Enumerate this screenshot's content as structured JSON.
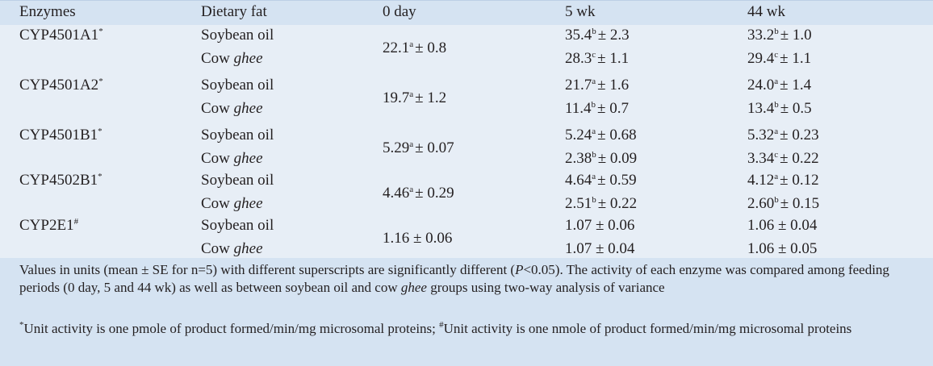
{
  "header": {
    "col1": "Enzymes",
    "col2": "Dietary fat",
    "col3": "0 day",
    "col4": "5 wk",
    "col5": "44 wk"
  },
  "groups": [
    {
      "enzyme": "CYP4501A1",
      "enzyme_sup": "*",
      "day0": "22.1",
      "day0_sup": "a",
      "day0_se": "± 0.8",
      "rows": [
        {
          "fat": "Soybean oil",
          "wk5": "35.4",
          "wk5_sup": "b",
          "wk5_se": "± 2.3",
          "wk44": "33.2",
          "wk44_sup": "b",
          "wk44_se": "± 1.0"
        },
        {
          "fat_prefix": "Cow ",
          "fat_italic": "ghee",
          "wk5": "28.3",
          "wk5_sup": "c",
          "wk5_se": "± 1.1",
          "wk44": "29.4",
          "wk44_sup": "c",
          "wk44_se": "± 1.1"
        }
      ]
    },
    {
      "enzyme": "CYP4501A2",
      "enzyme_sup": "*",
      "day0": "19.7",
      "day0_sup": "a",
      "day0_se": "± 1.2",
      "rows": [
        {
          "fat": "Soybean oil",
          "wk5": "21.7",
          "wk5_sup": "a",
          "wk5_se": "± 1.6",
          "wk44": "24.0",
          "wk44_sup": "a",
          "wk44_se": "± 1.4"
        },
        {
          "fat_prefix": "Cow ",
          "fat_italic": "ghee",
          "wk5": "11.4",
          "wk5_sup": "b",
          "wk5_se": "± 0.7",
          "wk44": "13.4",
          "wk44_sup": "b",
          "wk44_se": "± 0.5"
        }
      ]
    },
    {
      "enzyme": "CYP4501B1",
      "enzyme_sup": "*",
      "day0": "5.29",
      "day0_sup": "a",
      "day0_se": "± 0.07",
      "rows": [
        {
          "fat": "Soybean oil",
          "wk5": "5.24",
          "wk5_sup": "a",
          "wk5_se": "± 0.68",
          "wk44": "5.32",
          "wk44_sup": "a",
          "wk44_se": "± 0.23"
        },
        {
          "fat_prefix": "Cow ",
          "fat_italic": "ghee",
          "wk5": "2.38",
          "wk5_sup": "b",
          "wk5_se": "± 0.09",
          "wk44": "3.34",
          "wk44_sup": "c",
          "wk44_se": "± 0.22"
        }
      ]
    },
    {
      "enzyme": "CYP4502B1",
      "enzyme_sup": "*",
      "day0": "4.46",
      "day0_sup": "a",
      "day0_se": "± 0.29",
      "rows": [
        {
          "fat": "Soybean oil",
          "wk5": "4.64",
          "wk5_sup": "a",
          "wk5_se": "± 0.59",
          "wk44": "4.12",
          "wk44_sup": "a",
          "wk44_se": "± 0.12"
        },
        {
          "fat_prefix": "Cow ",
          "fat_italic": "ghee",
          "wk5": "2.51",
          "wk5_sup": "b",
          "wk5_se": "± 0.22",
          "wk44": "2.60",
          "wk44_sup": "b",
          "wk44_se": "± 0.15"
        }
      ]
    },
    {
      "enzyme": "CYP2E1",
      "enzyme_sup": "#",
      "day0": "1.16 ± 0.06",
      "day0_sup": "",
      "day0_se": "",
      "rows": [
        {
          "fat": "Soybean oil",
          "wk5": "1.07 ± 0.06",
          "wk5_sup": "",
          "wk5_se": "",
          "wk44": "1.06 ± 0.04",
          "wk44_sup": "",
          "wk44_se": ""
        },
        {
          "fat_prefix": "Cow ",
          "fat_italic": "ghee",
          "wk5": "1.07 ± 0.04",
          "wk5_sup": "",
          "wk5_se": "",
          "wk44": "1.06 ± 0.05",
          "wk44_sup": "",
          "wk44_se": ""
        }
      ]
    }
  ],
  "footer": {
    "note1_a": "Values in units (mean ± SE for n=5) with different superscripts are significantly different (",
    "note1_p": "P",
    "note1_b": "<0.05). The activity of each enzyme was compared among feeding periods (0 day, 5 and 44 wk) as well as between soybean oil and cow ",
    "note1_ghee": "ghee",
    "note1_c": " groups using two-way analysis of variance",
    "note2_sup1": "*",
    "note2_a": "Unit activity is one pmole of product formed/min/mg microsomal proteins; ",
    "note2_sup2": "#",
    "note2_b": "Unit activity is one nmole of product formed/min/mg microsomal proteins"
  },
  "colors": {
    "header_bg": "#d5e3f2",
    "body_bg": "#e7eef6",
    "text": "#231f20"
  }
}
